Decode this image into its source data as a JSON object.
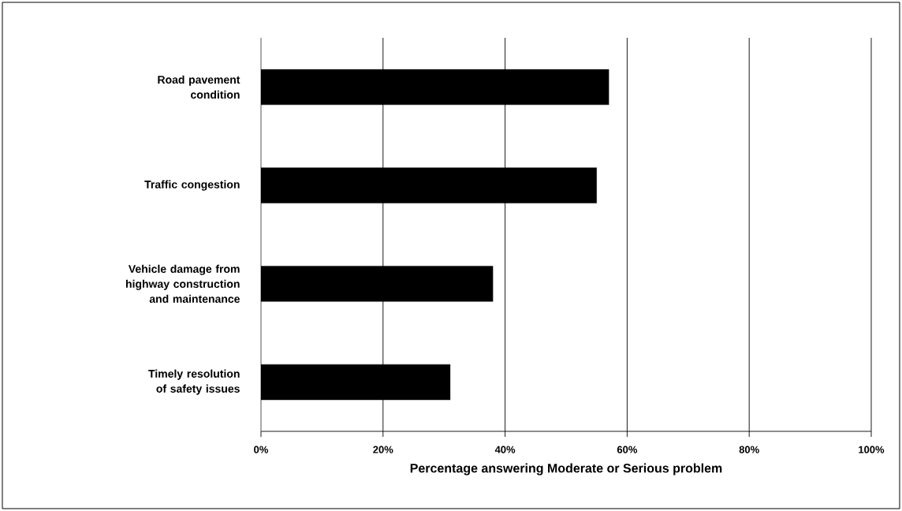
{
  "chart_data": {
    "type": "bar",
    "orientation": "horizontal",
    "categories": [
      "Road pavement condition",
      "Traffic congestion",
      "Vehicle damage from highway construction and maintenance",
      "Timely resolution of safety issues"
    ],
    "values": [
      57,
      55,
      38,
      31
    ],
    "color": "#000000",
    "xlabel": "Percentage answering Moderate or Serious problem",
    "xlim": [
      0,
      100
    ],
    "xticks": [
      {
        "value": 0,
        "label": "0%"
      },
      {
        "value": 20,
        "label": "20%"
      },
      {
        "value": 40,
        "label": "40%"
      },
      {
        "value": 60,
        "label": "60%"
      },
      {
        "value": 80,
        "label": "80%"
      },
      {
        "value": 100,
        "label": "100%"
      }
    ],
    "grid": "x"
  }
}
